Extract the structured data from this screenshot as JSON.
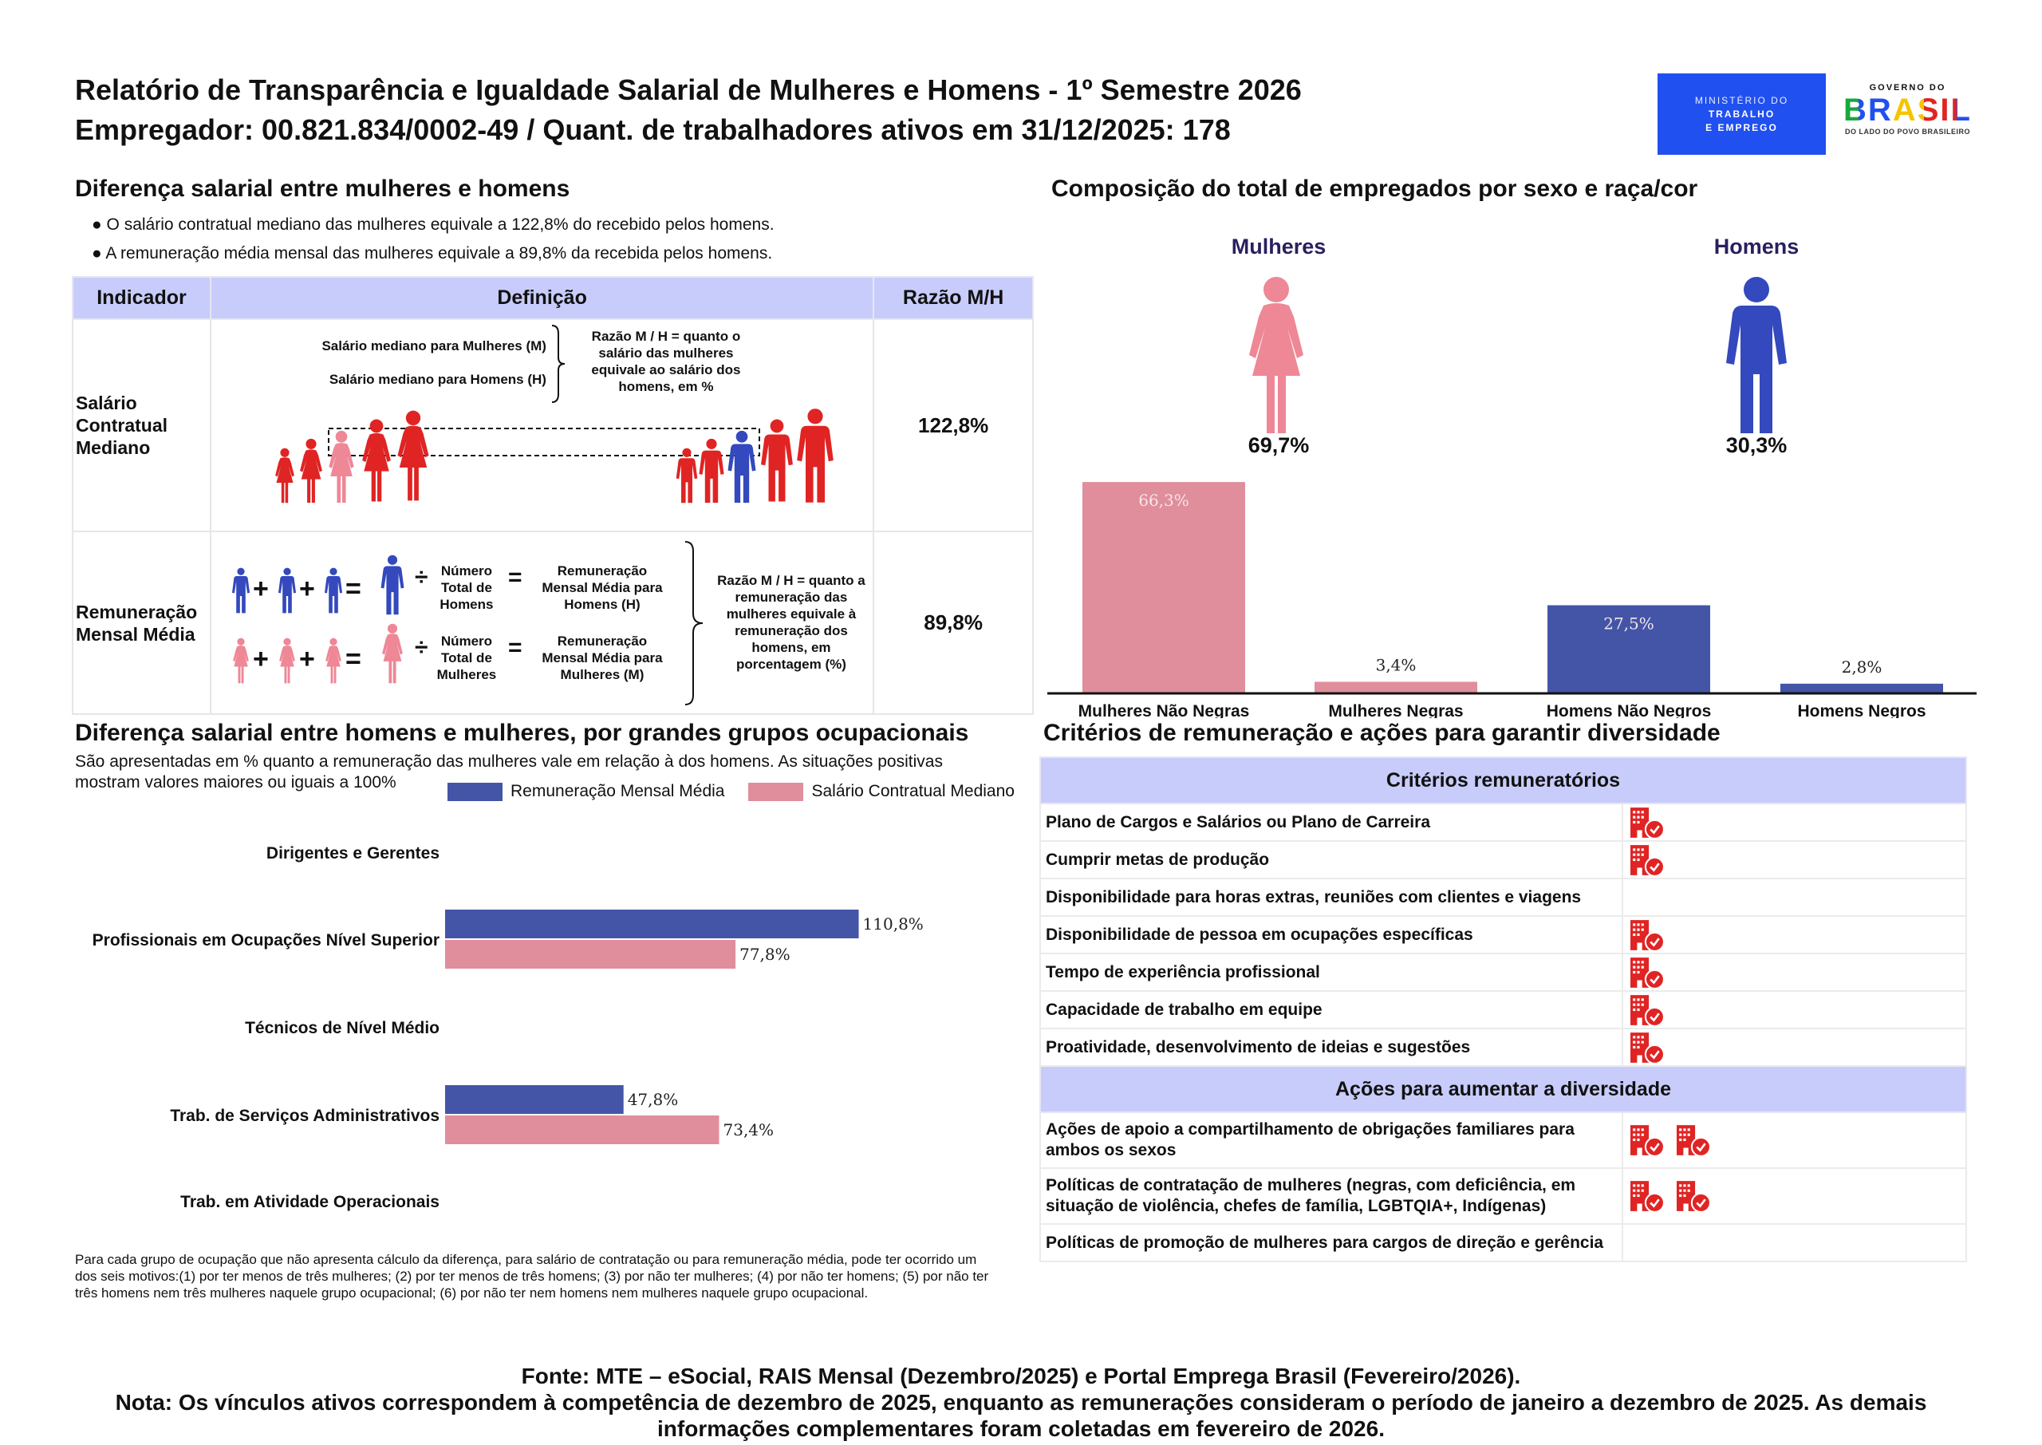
{
  "header": {
    "title": "Relatório de Transparência e Igualdade Salarial de Mulheres e Homens - 1º Semestre 2026",
    "subtitle": "Empregador: 00.821.834/0002-49 / Quant. de trabalhadores ativos em 31/12/2025: 178",
    "logo_ministry": [
      "MINISTÉRIO DO",
      "TRABALHO",
      "E EMPREGO"
    ],
    "logo_gov_top": "GOVERNO DO",
    "logo_gov_main": "BRASIL",
    "logo_gov_bottom": "DO LADO DO POVO BRASILEIRO"
  },
  "wage_gap": {
    "title": "Diferença salarial entre mulheres e homens",
    "bullets": [
      "● O salário contratual mediano das mulheres equivale a 122,8% do recebido pelos homens.",
      "● A remuneração média mensal das mulheres equivale a 89,8% da recebida pelos homens."
    ],
    "table": {
      "headers": [
        "Indicador",
        "Definição",
        "Razão M/H"
      ],
      "rows": [
        {
          "indicator": "Salário Contratual Mediano",
          "def_m": "Salário mediano para Mulheres (M)",
          "def_h": "Salário mediano para Homens (H)",
          "explain": "Razão M / H = quanto o salário das mulheres equivale ao salário dos homens, em %",
          "ratio": "122,8%"
        },
        {
          "indicator": "Remuneração Mensal Média",
          "count_h": "Número Total de Homens",
          "result_h": "Remuneração Mensal Média para Homens (H)",
          "count_m": "Número Total de Mulheres",
          "result_m": "Remuneração Mensal Média para Mulheres (M)",
          "explain": "Razão M / H = quanto a remuneração das mulheres equivale à remuneração dos homens, em porcentagem (%)",
          "ratio": "89,8%"
        }
      ]
    }
  },
  "composition": {
    "title": "Composição do total de empregados por sexo e raça/cor",
    "women_label": "Mulheres",
    "men_label": "Homens",
    "women_pct": "69,7%",
    "men_pct": "30,3%"
  },
  "occupational": {
    "title": "Diferença salarial entre homens e mulheres, por grandes grupos ocupacionais",
    "subtitle": "São apresentadas em % quanto a remuneração das mulheres vale em relação à dos homens. As situações positivas mostram valores maiores ou iguais a 100%",
    "note": "Para cada grupo de ocupação que não apresenta cálculo da diferença, para salário de contratação ou para remuneração média, pode ter ocorrido um dos seis motivos:(1) por ter menos de três mulheres; (2) por ter menos de três homens; (3) por não ter mulheres; (4) por não ter homens; (5) por não ter três homens nem três mulheres naquele grupo ocupacional; (6) por não ter nem homens nem mulheres naquele grupo ocupacional."
  },
  "chart_data": [
    {
      "type": "bar",
      "orientation": "vertical",
      "categories": [
        "Mulheres Não Negras",
        "Mulheres Negras",
        "Homens Não Negros",
        "Homens Negros"
      ],
      "values": [
        66.3,
        3.4,
        27.5,
        2.8
      ],
      "labels": [
        "66,3%",
        "3,4%",
        "27,5%",
        "2,8%"
      ],
      "colors": [
        "#e08e9c",
        "#e08e9c",
        "#4455a8",
        "#4455a8"
      ],
      "grid": false
    },
    {
      "type": "bar",
      "orientation": "horizontal",
      "categories": [
        "Dirigentes e Gerentes",
        "Profissionais em Ocupações Nível Superior",
        "Técnicos de Nível Médio",
        "Trab. de Serviços Administrativos",
        "Trab. em Atividade Operacionais"
      ],
      "series": [
        {
          "name": "Remuneração Mensal Média",
          "color": "#4455a8",
          "values": [
            null,
            110.8,
            null,
            47.8,
            null
          ],
          "labels": [
            null,
            "110,8%",
            null,
            "47,8%",
            null
          ]
        },
        {
          "name": "Salário Contratual Mediano",
          "color": "#e08e9c",
          "values": [
            null,
            77.8,
            null,
            73.4,
            null
          ],
          "labels": [
            null,
            "77,8%",
            null,
            "73,4%",
            null
          ]
        }
      ],
      "legend": "top-right",
      "grid": false
    }
  ],
  "criteria": {
    "title": "Critérios de remuneração e ações para garantir diversidade",
    "remuneration_header": "Critérios remuneratórios",
    "remuneration_items": [
      {
        "label": "Plano de Cargos e Salários ou Plano de Carreira",
        "icons": 1
      },
      {
        "label": "Cumprir metas de produção",
        "icons": 1
      },
      {
        "label": "Disponibilidade para horas extras, reuniões com clientes e viagens",
        "icons": 0
      },
      {
        "label": "Disponibilidade de pessoa em ocupações específicas",
        "icons": 1
      },
      {
        "label": "Tempo de experiência profissional",
        "icons": 1
      },
      {
        "label": "Capacidade de trabalho em equipe",
        "icons": 1
      },
      {
        "label": "Proatividade, desenvolvimento de ideias e sugestões",
        "icons": 1
      }
    ],
    "diversity_header": "Ações para aumentar a diversidade",
    "diversity_items": [
      {
        "label": "Ações de apoio a compartilhamento de obrigações familiares para ambos os sexos",
        "icons": 2
      },
      {
        "label": "Políticas de contratação de mulheres (negras, com deficiência, em situação de violência, chefes de família, LGBTQIA+, Indígenas)",
        "icons": 2
      },
      {
        "label": "Políticas de promoção de mulheres para cargos de direção e gerência",
        "icons": 0
      }
    ],
    "icon": "building-check-icon",
    "icon_color": "#e02424"
  },
  "footer": {
    "source": "Fonte: MTE – eSocial, RAIS Mensal (Dezembro/2025) e Portal Emprega Brasil (Fevereiro/2026).",
    "note": "Nota: Os vínculos ativos correspondem à competência de dezembro de 2025, enquanto as remunerações consideram o período de janeiro a dezembro de 2025. As demais informações complementares foram coletadas em fevereiro de 2026."
  },
  "colors": {
    "header_bg": "#c8ccfb",
    "women": "#ee8796",
    "men": "#3349bd",
    "red": "#e02424",
    "navy_label": "#2a1f5e"
  }
}
